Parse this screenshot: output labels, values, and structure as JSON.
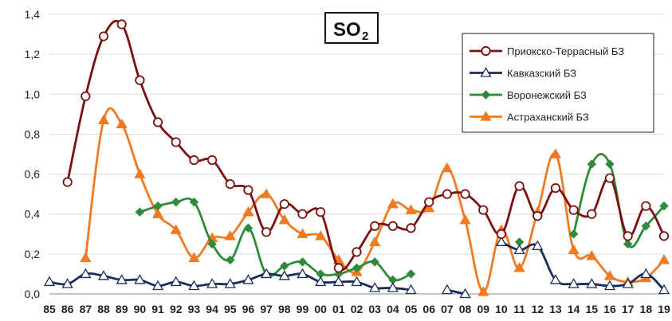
{
  "chart_data": {
    "type": "line",
    "title": "SO",
    "title_subscript": "2",
    "xlabel": "",
    "ylabel": "",
    "ylim": [
      0,
      1.4
    ],
    "yticks": [
      "0,0",
      "0,2",
      "0,4",
      "0,6",
      "0,8",
      "1,0",
      "1,2",
      "1,4"
    ],
    "categories": [
      "85",
      "86",
      "87",
      "88",
      "89",
      "90",
      "91",
      "92",
      "93",
      "94",
      "95",
      "96",
      "97",
      "98",
      "99",
      "00",
      "01",
      "02",
      "03",
      "04",
      "05",
      "06",
      "07",
      "08",
      "09",
      "10",
      "11",
      "12",
      "13",
      "14",
      "15",
      "16",
      "17",
      "18",
      "19"
    ],
    "grid": true,
    "legend_position": "top-right",
    "series": [
      {
        "name": "Приокско-Террасный БЗ",
        "color": "#7b1010",
        "marker": "circle",
        "values": [
          null,
          0.56,
          0.99,
          1.29,
          1.35,
          1.07,
          0.86,
          0.76,
          0.67,
          0.67,
          0.55,
          0.52,
          0.31,
          0.45,
          0.4,
          0.41,
          0.13,
          0.21,
          0.34,
          0.34,
          0.33,
          0.46,
          0.5,
          0.5,
          0.42,
          0.3,
          0.54,
          0.39,
          0.53,
          0.42,
          0.4,
          0.58,
          0.29,
          0.44,
          0.29
        ]
      },
      {
        "name": "Кавказский БЗ",
        "color": "#1a2d5a",
        "marker": "triangle",
        "values": [
          0.06,
          0.05,
          0.1,
          0.09,
          0.07,
          0.07,
          0.04,
          0.06,
          0.04,
          0.05,
          0.05,
          0.07,
          0.1,
          0.09,
          0.1,
          0.06,
          0.06,
          0.06,
          0.03,
          0.03,
          0.02,
          null,
          0.02,
          0.0,
          null,
          0.26,
          0.22,
          0.24,
          0.07,
          0.05,
          0.05,
          0.04,
          0.05,
          0.1,
          0.02
        ]
      },
      {
        "name": "Воронежский БЗ",
        "color": "#2e8b3a",
        "marker": "diamond",
        "values": [
          null,
          null,
          null,
          null,
          null,
          0.41,
          0.44,
          0.46,
          0.46,
          0.25,
          0.17,
          0.33,
          0.1,
          0.14,
          0.16,
          0.1,
          0.1,
          0.13,
          0.16,
          0.07,
          0.1,
          null,
          null,
          null,
          null,
          null,
          0.26,
          null,
          null,
          0.3,
          0.65,
          0.65,
          0.25,
          0.34,
          0.44
        ]
      },
      {
        "name": "Астраханский БЗ",
        "color": "#f07a22",
        "marker": "triangle",
        "values": [
          null,
          null,
          0.18,
          0.87,
          0.85,
          0.6,
          0.4,
          0.32,
          0.18,
          0.28,
          0.29,
          0.41,
          0.5,
          0.37,
          0.3,
          0.29,
          0.17,
          0.11,
          0.26,
          0.45,
          0.42,
          0.43,
          0.63,
          0.37,
          0.01,
          0.32,
          0.13,
          0.41,
          0.7,
          0.22,
          0.19,
          0.09,
          0.06,
          0.08,
          0.17
        ]
      }
    ]
  }
}
